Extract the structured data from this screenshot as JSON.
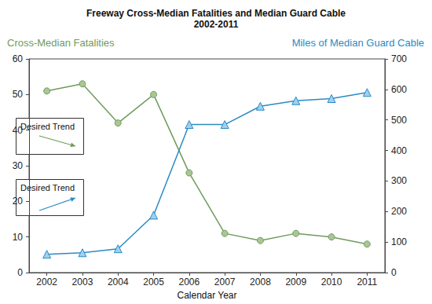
{
  "chart_data": {
    "type": "line",
    "title": "Freeway Cross-Median Fatalities and Median Guard Cable",
    "subtitle": "2002-2011",
    "xlabel": "Calendar Year",
    "categories": [
      "2002",
      "2003",
      "2004",
      "2005",
      "2006",
      "2007",
      "2008",
      "2009",
      "2010",
      "2011"
    ],
    "series": [
      {
        "name": "Cross-Median Fatalities",
        "color": "#6f9b5c",
        "marker": "circle",
        "values": [
          51,
          53,
          42,
          50,
          28,
          11,
          9,
          11,
          10,
          8
        ]
      },
      {
        "name": "Miles of Median Guard Cable",
        "color": "#2a8ac6",
        "marker": "triangle",
        "axis": "y2",
        "values": [
          60,
          65,
          78,
          188,
          485,
          485,
          545,
          563,
          570,
          590
        ]
      }
    ],
    "ylim": [
      0,
      60
    ],
    "yticks": [
      0,
      10,
      20,
      30,
      40,
      50,
      60
    ],
    "y2lim": [
      0,
      700
    ],
    "y2ticks": [
      0,
      100,
      200,
      300,
      400,
      500,
      600,
      700
    ],
    "grid": false,
    "annotations": [
      {
        "text": "Desired Trend",
        "color": "#6f9b5c"
      },
      {
        "text": "Desired Trend",
        "color": "#2a8ac6"
      }
    ]
  }
}
